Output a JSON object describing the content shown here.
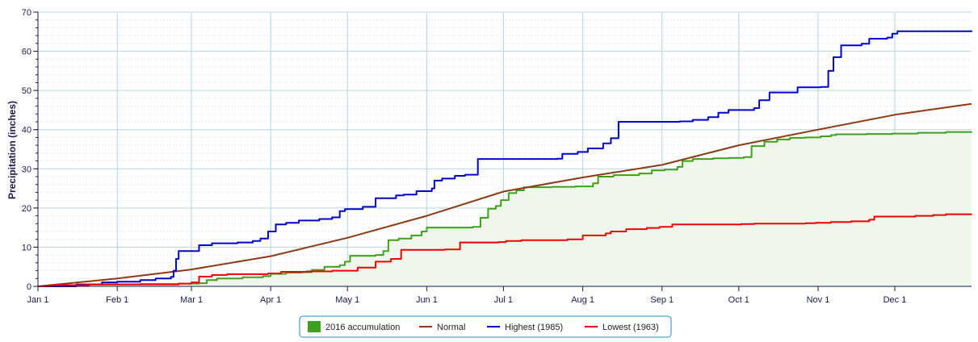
{
  "chart_data": {
    "type": "line",
    "title": "",
    "xlabel": "",
    "ylabel": "Precipitation (inches)",
    "ylim": [
      0,
      70
    ],
    "yticks": [
      0,
      10,
      20,
      30,
      40,
      50,
      60,
      70
    ],
    "xlim_day": [
      0,
      365
    ],
    "xticks": [
      {
        "label": "Jan 1",
        "day": 0
      },
      {
        "label": "Feb 1",
        "day": 31
      },
      {
        "label": "Mar 1",
        "day": 60
      },
      {
        "label": "Apr 1",
        "day": 91
      },
      {
        "label": "May 1",
        "day": 121
      },
      {
        "label": "Jun 1",
        "day": 152
      },
      {
        "label": "Jul 1",
        "day": 182
      },
      {
        "label": "Aug 1",
        "day": 213
      },
      {
        "label": "Sep 1",
        "day": 244
      },
      {
        "label": "Oct 1",
        "day": 274
      },
      {
        "label": "Nov 1",
        "day": 305
      },
      {
        "label": "Dec 1",
        "day": 335
      }
    ],
    "grid": true,
    "legend_position": "bottom-center",
    "series": [
      {
        "name": "2016 accumulation",
        "type": "area",
        "color": "#3f9f1f",
        "fill": "#eef7e9",
        "step": true,
        "points": [
          [
            0,
            0
          ],
          [
            5,
            0.3
          ],
          [
            20,
            0.5
          ],
          [
            40,
            0.6
          ],
          [
            55,
            0.7
          ],
          [
            63,
            0.8
          ],
          [
            66,
            1.6
          ],
          [
            70,
            2.0
          ],
          [
            80,
            2.3
          ],
          [
            88,
            2.6
          ],
          [
            91,
            3.2
          ],
          [
            97,
            3.5
          ],
          [
            103,
            3.6
          ],
          [
            107,
            4.2
          ],
          [
            112,
            5.0
          ],
          [
            118,
            5.4
          ],
          [
            120,
            6.3
          ],
          [
            122,
            7.8
          ],
          [
            132,
            8.0
          ],
          [
            135,
            9.0
          ],
          [
            137,
            11.8
          ],
          [
            141,
            12.2
          ],
          [
            146,
            13.0
          ],
          [
            150,
            14.0
          ],
          [
            152,
            15.0
          ],
          [
            170,
            15.2
          ],
          [
            173,
            17.5
          ],
          [
            176,
            19.8
          ],
          [
            179,
            20.5
          ],
          [
            181,
            22.0
          ],
          [
            184,
            23.8
          ],
          [
            187,
            24.5
          ],
          [
            190,
            25.3
          ],
          [
            201,
            25.4
          ],
          [
            210,
            25.5
          ],
          [
            217,
            26.3
          ],
          [
            219,
            28.0
          ],
          [
            225,
            28.4
          ],
          [
            235,
            28.8
          ],
          [
            240,
            29.6
          ],
          [
            245,
            29.8
          ],
          [
            250,
            30.5
          ],
          [
            252,
            32.0
          ],
          [
            256,
            32.5
          ],
          [
            264,
            32.7
          ],
          [
            270,
            32.8
          ],
          [
            276,
            33.0
          ],
          [
            279,
            35.8
          ],
          [
            284,
            36.9
          ],
          [
            289,
            37.5
          ],
          [
            294,
            37.9
          ],
          [
            300,
            38.0
          ],
          [
            306,
            38.3
          ],
          [
            310,
            38.6
          ],
          [
            312,
            38.8
          ],
          [
            324,
            38.9
          ],
          [
            334,
            39.0
          ],
          [
            344,
            39.2
          ],
          [
            355,
            39.4
          ],
          [
            365,
            39.5
          ]
        ]
      },
      {
        "name": "Normal",
        "type": "line",
        "color": "#8b3a14",
        "points": [
          [
            0,
            0
          ],
          [
            31,
            2.0
          ],
          [
            60,
            4.3
          ],
          [
            91,
            7.7
          ],
          [
            121,
            12.4
          ],
          [
            152,
            18.0
          ],
          [
            182,
            24.2
          ],
          [
            213,
            27.8
          ],
          [
            244,
            31.0
          ],
          [
            274,
            36.0
          ],
          [
            305,
            40.0
          ],
          [
            335,
            43.8
          ],
          [
            365,
            46.6
          ]
        ]
      },
      {
        "name": "Highest (1985)",
        "type": "line",
        "color": "#0000cc",
        "step": true,
        "points": [
          [
            0,
            0
          ],
          [
            15,
            0.5
          ],
          [
            25,
            1.0
          ],
          [
            31,
            1.2
          ],
          [
            40,
            1.6
          ],
          [
            46,
            2.0
          ],
          [
            52,
            2.4
          ],
          [
            53,
            4.0
          ],
          [
            54,
            7.0
          ],
          [
            55,
            9.0
          ],
          [
            63,
            10.5
          ],
          [
            68,
            11.0
          ],
          [
            78,
            11.2
          ],
          [
            84,
            11.6
          ],
          [
            87,
            12.2
          ],
          [
            90,
            14.0
          ],
          [
            93,
            15.8
          ],
          [
            97,
            16.2
          ],
          [
            102,
            16.8
          ],
          [
            110,
            17.2
          ],
          [
            115,
            17.6
          ],
          [
            118,
            19.2
          ],
          [
            120,
            19.7
          ],
          [
            127,
            20.3
          ],
          [
            132,
            22.5
          ],
          [
            140,
            23.2
          ],
          [
            143,
            23.4
          ],
          [
            148,
            24.3
          ],
          [
            154,
            25.0
          ],
          [
            155,
            27.0
          ],
          [
            158,
            27.5
          ],
          [
            163,
            28.2
          ],
          [
            167,
            28.5
          ],
          [
            172,
            32.5
          ],
          [
            203,
            32.6
          ],
          [
            205,
            33.8
          ],
          [
            211,
            34.3
          ],
          [
            215,
            35.2
          ],
          [
            221,
            36.5
          ],
          [
            224,
            37.8
          ],
          [
            227,
            42.0
          ],
          [
            251,
            42.1
          ],
          [
            256,
            42.5
          ],
          [
            262,
            43.2
          ],
          [
            266,
            44.3
          ],
          [
            270,
            45.0
          ],
          [
            280,
            45.5
          ],
          [
            282,
            47.5
          ],
          [
            286,
            49.5
          ],
          [
            297,
            50.8
          ],
          [
            306,
            50.9
          ],
          [
            309,
            55.0
          ],
          [
            311,
            58.5
          ],
          [
            314,
            61.5
          ],
          [
            322,
            61.9
          ],
          [
            325,
            63.2
          ],
          [
            332,
            63.5
          ],
          [
            334,
            64.5
          ],
          [
            336,
            65.1
          ],
          [
            365,
            65.3
          ]
        ]
      },
      {
        "name": "Lowest (1963)",
        "type": "line",
        "color": "#ee0000",
        "step": true,
        "points": [
          [
            0,
            0
          ],
          [
            5,
            0.3
          ],
          [
            20,
            0.5
          ],
          [
            40,
            0.5
          ],
          [
            55,
            0.7
          ],
          [
            60,
            1.0
          ],
          [
            63,
            2.5
          ],
          [
            68,
            2.9
          ],
          [
            74,
            3.1
          ],
          [
            90,
            3.3
          ],
          [
            95,
            3.7
          ],
          [
            105,
            3.8
          ],
          [
            115,
            4.0
          ],
          [
            125,
            4.8
          ],
          [
            132,
            6.3
          ],
          [
            138,
            7.0
          ],
          [
            142,
            9.3
          ],
          [
            159,
            9.4
          ],
          [
            165,
            11.2
          ],
          [
            180,
            11.3
          ],
          [
            183,
            11.6
          ],
          [
            189,
            11.8
          ],
          [
            207,
            12.0
          ],
          [
            213,
            13.0
          ],
          [
            222,
            13.5
          ],
          [
            224,
            14.0
          ],
          [
            230,
            14.6
          ],
          [
            238,
            14.9
          ],
          [
            243,
            15.2
          ],
          [
            248,
            15.8
          ],
          [
            275,
            15.9
          ],
          [
            280,
            16.0
          ],
          [
            300,
            16.1
          ],
          [
            304,
            16.2
          ],
          [
            310,
            16.4
          ],
          [
            318,
            16.6
          ],
          [
            325,
            17.0
          ],
          [
            327,
            17.8
          ],
          [
            343,
            18.0
          ],
          [
            350,
            18.2
          ],
          [
            355,
            18.4
          ],
          [
            365,
            18.5
          ]
        ]
      }
    ]
  }
}
